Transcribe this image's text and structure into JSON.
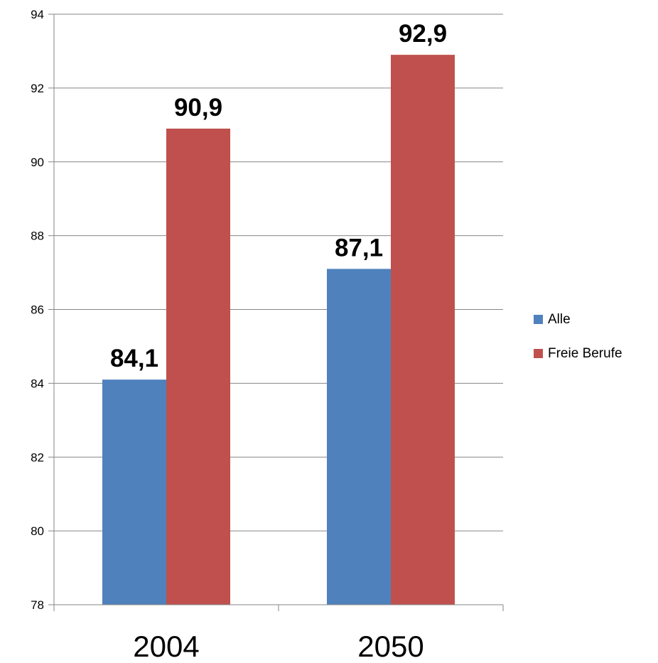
{
  "chart_data": {
    "type": "bar",
    "categories": [
      "2004",
      "2050"
    ],
    "series": [
      {
        "name": "Alle",
        "values": [
          84.1,
          87.1
        ],
        "labels": [
          "84,1",
          "87,1"
        ],
        "color": "#4F81BD"
      },
      {
        "name": "Freie Berufe",
        "values": [
          90.9,
          92.9
        ],
        "labels": [
          "90,9",
          "92,9"
        ],
        "color": "#C0504D"
      }
    ],
    "yticks": [
      "78",
      "80",
      "82",
      "84",
      "86",
      "88",
      "90",
      "92",
      "94"
    ],
    "ylim": [
      78,
      94
    ],
    "grid": true,
    "legend": "right",
    "title": "",
    "xlabel": "",
    "ylabel": ""
  }
}
